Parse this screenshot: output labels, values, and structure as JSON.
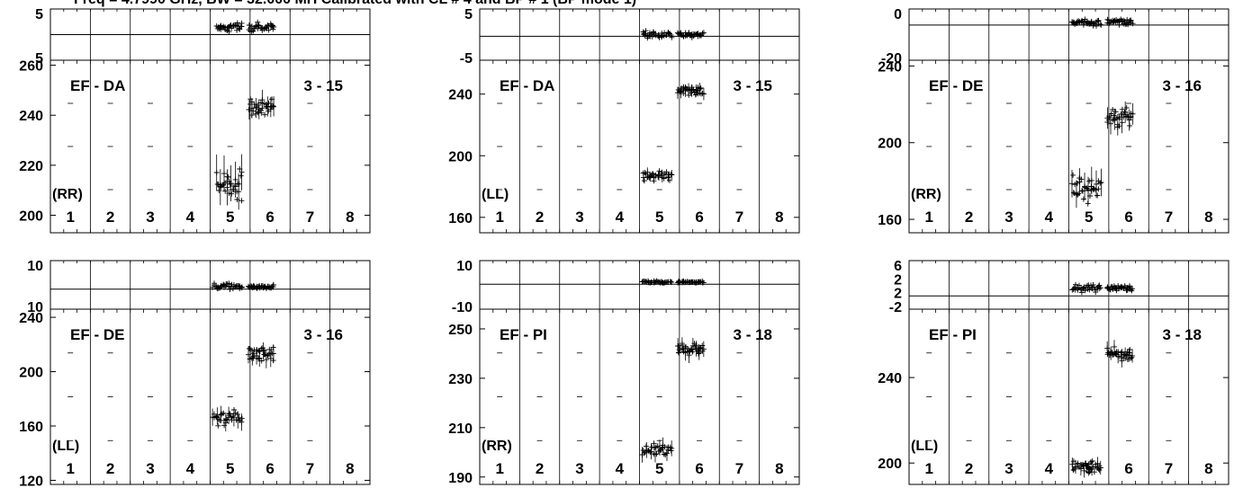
{
  "header": {
    "title": "Freq = 4.7990 GHz, BW = 32.000 MH   Calibrated with CL # 4 and BP # 1 (BP mode 1)"
  },
  "chart_data": [
    {
      "type": "scatter",
      "baseline": "EF - DA",
      "timerange": "3 - 15",
      "pol": "(RR)",
      "antennas": [
        "1",
        "2",
        "3",
        "4",
        "5",
        "6",
        "7",
        "8"
      ],
      "top_ylim": [
        -5.3,
        5.3
      ],
      "top_yticks": [
        "5",
        "5"
      ],
      "top_ref": 0,
      "bottom_ylim": [
        193,
        262
      ],
      "bottom_yticks": [
        "200",
        "220",
        "240",
        "260"
      ],
      "segments": [
        {
          "start": 0.52,
          "end": 0.6,
          "amp_mean": 212,
          "amp_spread": 9,
          "phase_mean": 1.5,
          "phase_spread": 1.5
        },
        {
          "start": 0.62,
          "end": 0.7,
          "amp_mean": 243,
          "amp_spread": 5,
          "phase_mean": 1.5,
          "phase_spread": 1.2
        }
      ]
    },
    {
      "type": "scatter",
      "baseline": "EF - DA",
      "timerange": "3 - 15",
      "pol": "(LL)",
      "antennas": [
        "1",
        "2",
        "3",
        "4",
        "5",
        "6",
        "7",
        "8"
      ],
      "top_ylim": [
        -7,
        8
      ],
      "top_yticks": [
        "5",
        "-5"
      ],
      "top_ref": 0,
      "bottom_ylim": [
        150,
        262
      ],
      "bottom_yticks": [
        "160",
        "200",
        "240"
      ],
      "segments": [
        {
          "start": 0.51,
          "end": 0.6,
          "amp_mean": 187,
          "amp_spread": 4,
          "phase_mean": 0.5,
          "phase_spread": 1.5
        },
        {
          "start": 0.62,
          "end": 0.7,
          "amp_mean": 242,
          "amp_spread": 5,
          "phase_mean": 0.5,
          "phase_spread": 1.0
        }
      ]
    },
    {
      "type": "scatter",
      "baseline": "EF - DE",
      "timerange": "3 - 16",
      "pol": "(RR)",
      "antennas": [
        "1",
        "2",
        "3",
        "4",
        "5",
        "6",
        "7",
        "8"
      ],
      "top_ylim": [
        -24,
        11
      ],
      "top_yticks": [
        "0",
        "-20"
      ],
      "top_ref": 0,
      "bottom_ylim": [
        153,
        243
      ],
      "bottom_yticks": [
        "160",
        "200",
        "240"
      ],
      "segments": [
        {
          "start": 0.51,
          "end": 0.6,
          "amp_mean": 176,
          "amp_spread": 9,
          "phase_mean": 1.5,
          "phase_spread": 3
        },
        {
          "start": 0.62,
          "end": 0.7,
          "amp_mean": 213,
          "amp_spread": 7,
          "phase_mean": 2,
          "phase_spread": 3
        }
      ]
    },
    {
      "type": "scatter",
      "baseline": "EF - DE",
      "timerange": "3 - 16",
      "pol": "(LL)",
      "antennas": [
        "1",
        "2",
        "3",
        "4",
        "5",
        "6",
        "7",
        "8"
      ],
      "top_ylim": [
        -14,
        20
      ],
      "top_yticks": [
        "10",
        "10"
      ],
      "top_ref": 0,
      "bottom_ylim": [
        117,
        246
      ],
      "bottom_yticks": [
        "120",
        "160",
        "200",
        "240"
      ],
      "segments": [
        {
          "start": 0.51,
          "end": 0.6,
          "amp_mean": 165,
          "amp_spread": 8,
          "phase_mean": 2,
          "phase_spread": 3
        },
        {
          "start": 0.62,
          "end": 0.7,
          "amp_mean": 212,
          "amp_spread": 8,
          "phase_mean": 1.5,
          "phase_spread": 2
        }
      ]
    },
    {
      "type": "scatter",
      "baseline": "EF - PI",
      "timerange": "3 - 18",
      "pol": "(RR)",
      "antennas": [
        "1",
        "2",
        "3",
        "4",
        "5",
        "6",
        "7",
        "8"
      ],
      "top_ylim": [
        -18,
        17
      ],
      "top_yticks": [
        "10",
        "-10"
      ],
      "top_ref": 0,
      "bottom_ylim": [
        187,
        258
      ],
      "bottom_yticks": [
        "190",
        "210",
        "230",
        "250"
      ],
      "segments": [
        {
          "start": 0.51,
          "end": 0.6,
          "amp_mean": 201,
          "amp_spread": 4,
          "phase_mean": 1.5,
          "phase_spread": 1.2
        },
        {
          "start": 0.62,
          "end": 0.7,
          "amp_mean": 242,
          "amp_spread": 4,
          "phase_mean": 1.5,
          "phase_spread": 1.0
        }
      ]
    },
    {
      "type": "scatter",
      "baseline": "EF - PI",
      "timerange": "3 - 18",
      "pol": "(LL)",
      "antennas": [
        "1",
        "2",
        "3",
        "4",
        "5",
        "6",
        "7",
        "8"
      ],
      "top_ylim": [
        -3,
        8
      ],
      "top_yticks": [
        "6",
        "2",
        "2",
        "-2"
      ],
      "top_ref": 0,
      "bottom_ylim": [
        190,
        272
      ],
      "bottom_yticks": [
        "200",
        "240"
      ],
      "segments": [
        {
          "start": 0.51,
          "end": 0.6,
          "amp_mean": 198,
          "amp_spread": 4,
          "phase_mean": 1.8,
          "phase_spread": 1.2
        },
        {
          "start": 0.62,
          "end": 0.7,
          "amp_mean": 251,
          "amp_spread": 4,
          "phase_mean": 1.8,
          "phase_spread": 1.0
        }
      ]
    }
  ]
}
